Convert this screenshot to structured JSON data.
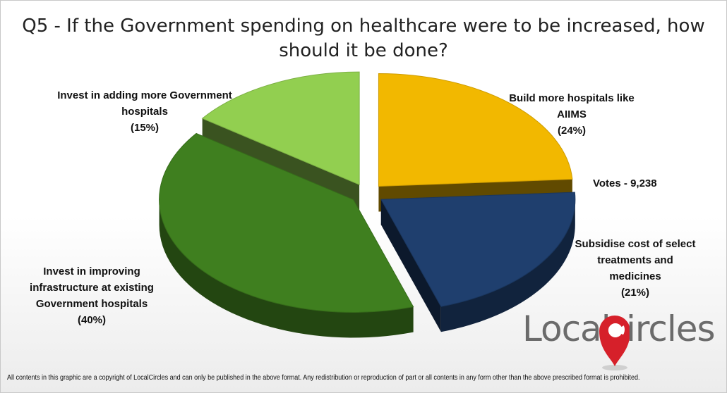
{
  "chart_data": {
    "type": "pie",
    "title": "Q5 - If the Government spending on healthcare were to be increased, how should it be done?",
    "slices": [
      {
        "label": "Build more hospitals like AIIMS",
        "value": 24,
        "value_label": "(24%)",
        "color": "#f2b800"
      },
      {
        "label": "Subsidise cost of select treatments and medicines",
        "value": 21,
        "value_label": "(21%)",
        "color": "#1f3f6e"
      },
      {
        "label": "Invest in improving infrastructure at existing Government hospitals",
        "value": 40,
        "value_label": "(40%)",
        "color": "#3f7f1f"
      },
      {
        "label": "Invest in adding more Government hospitals",
        "value": 15,
        "value_label": "(15%)",
        "color": "#92cf50"
      }
    ],
    "annotation": "Votes - 9,238"
  },
  "labels": {
    "aiims": {
      "lines": [
        "Build more hospitals like AIIMS"
      ],
      "pct": "(24%)"
    },
    "subsidise": {
      "lines": [
        "Subsidise cost of select",
        "treatments and",
        "medicines"
      ],
      "pct": "(21%)"
    },
    "infra": {
      "lines": [
        "Invest in improving",
        "infrastructure at existing",
        "Government hospitals"
      ],
      "pct": "(40%)"
    },
    "adding": {
      "lines": [
        "Invest in adding more Government",
        "hospitals"
      ],
      "pct": "(15%)"
    }
  },
  "logo": {
    "text_left": "Local",
    "text_right": "ircles"
  },
  "footer": "All contents in this graphic are a copyright of LocalCircles and can only be published in the above format. Any redistribution or reproduction of part or all contents in any form other than the above prescribed format is prohibited."
}
